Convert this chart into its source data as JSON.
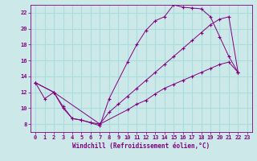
{
  "title": "",
  "xlabel": "Windchill (Refroidissement éolien,°C)",
  "ylabel": "",
  "background_color": "#cce8e8",
  "line_color": "#800080",
  "grid_color": "#aadddd",
  "xlim": [
    -0.5,
    23.5
  ],
  "ylim": [
    7,
    23
  ],
  "yticks": [
    8,
    10,
    12,
    14,
    16,
    18,
    20,
    22
  ],
  "xticks": [
    0,
    1,
    2,
    3,
    4,
    5,
    6,
    7,
    8,
    9,
    10,
    11,
    12,
    13,
    14,
    15,
    16,
    17,
    18,
    19,
    20,
    21,
    22,
    23
  ],
  "series1": [
    [
      0,
      13.2
    ],
    [
      1,
      11.2
    ],
    [
      2,
      12.0
    ],
    [
      3,
      10.0
    ],
    [
      4,
      8.7
    ],
    [
      5,
      8.5
    ],
    [
      7,
      7.8
    ],
    [
      8,
      11.2
    ],
    [
      10,
      15.8
    ],
    [
      11,
      18.0
    ],
    [
      12,
      19.8
    ],
    [
      13,
      21.0
    ],
    [
      14,
      21.5
    ],
    [
      15,
      23.0
    ],
    [
      16,
      22.7
    ],
    [
      17,
      22.6
    ],
    [
      18,
      22.5
    ],
    [
      19,
      21.5
    ],
    [
      20,
      19.0
    ],
    [
      21,
      16.5
    ],
    [
      22,
      14.5
    ]
  ],
  "series2": [
    [
      0,
      13.2
    ],
    [
      2,
      12.0
    ],
    [
      3,
      10.2
    ],
    [
      4,
      8.7
    ],
    [
      5,
      8.5
    ],
    [
      6,
      8.2
    ],
    [
      7,
      8.0
    ],
    [
      8,
      9.5
    ],
    [
      9,
      10.5
    ],
    [
      10,
      11.5
    ],
    [
      11,
      12.5
    ],
    [
      12,
      13.5
    ],
    [
      13,
      14.5
    ],
    [
      14,
      15.5
    ],
    [
      15,
      16.5
    ],
    [
      16,
      17.5
    ],
    [
      17,
      18.5
    ],
    [
      18,
      19.5
    ],
    [
      19,
      20.5
    ],
    [
      20,
      21.2
    ],
    [
      21,
      21.5
    ],
    [
      22,
      14.5
    ]
  ],
  "series3": [
    [
      0,
      13.2
    ],
    [
      2,
      12.0
    ],
    [
      7,
      8.0
    ],
    [
      10,
      9.8
    ],
    [
      11,
      10.5
    ],
    [
      12,
      11.0
    ],
    [
      13,
      11.8
    ],
    [
      14,
      12.5
    ],
    [
      15,
      13.0
    ],
    [
      16,
      13.5
    ],
    [
      17,
      14.0
    ],
    [
      18,
      14.5
    ],
    [
      19,
      15.0
    ],
    [
      20,
      15.5
    ],
    [
      21,
      15.8
    ],
    [
      22,
      14.5
    ]
  ]
}
